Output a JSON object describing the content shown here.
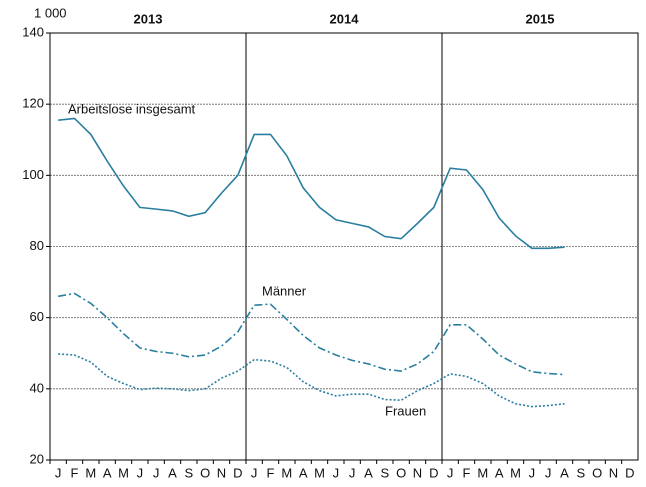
{
  "chart_data": {
    "type": "line",
    "y_label": "1 000",
    "year_groups": [
      "2013",
      "2014",
      "2015"
    ],
    "categories": [
      "J",
      "F",
      "M",
      "A",
      "M",
      "J",
      "J",
      "A",
      "S",
      "O",
      "N",
      "D",
      "J",
      "F",
      "M",
      "A",
      "M",
      "J",
      "J",
      "A",
      "S",
      "O",
      "N",
      "D",
      "J",
      "F",
      "M",
      "A",
      "M",
      "J",
      "J",
      "A",
      "S",
      "O",
      "N",
      "D"
    ],
    "series": [
      {
        "name": "Arbeitslose insgesamt",
        "color": "#2a7fa0",
        "dash": "solid",
        "values": [
          115.5,
          116,
          111.5,
          104,
          97,
          91,
          90.5,
          90,
          88.5,
          89.5,
          95,
          100,
          111.5,
          111.5,
          105.5,
          96.5,
          91,
          87.5,
          86.5,
          85.5,
          82.8,
          82.2,
          86.5,
          91,
          102,
          101.5,
          96,
          88,
          83,
          79.5,
          79.5,
          79.8,
          null,
          null,
          null,
          null
        ]
      },
      {
        "name": "Männer",
        "color": "#2a7fa0",
        "dash": "dashdot",
        "values": [
          66,
          66.8,
          64,
          60,
          55.5,
          51.5,
          50.5,
          50,
          49,
          49.5,
          52,
          56,
          63.5,
          63.8,
          59.5,
          55,
          51.5,
          49.5,
          48,
          47,
          45.5,
          45,
          47,
          50.5,
          58,
          58,
          54,
          49.5,
          47,
          44.8,
          44.3,
          44,
          null,
          null,
          null,
          null
        ]
      },
      {
        "name": "Frauen",
        "color": "#2a7fa0",
        "dash": "dotted",
        "values": [
          49.8,
          49.5,
          47.5,
          43.5,
          41.5,
          39.8,
          40.2,
          40,
          39.5,
          40,
          43,
          45,
          48.2,
          47.8,
          46,
          42,
          39.5,
          38,
          38.5,
          38.5,
          37,
          36.8,
          39.5,
          41.5,
          44.2,
          43.5,
          41.5,
          38,
          35.8,
          35,
          35.3,
          35.8,
          null,
          null,
          null,
          null
        ]
      }
    ],
    "ylim": [
      20,
      140
    ],
    "yticks": [
      20,
      40,
      60,
      80,
      100,
      120,
      140
    ],
    "grid": true
  }
}
